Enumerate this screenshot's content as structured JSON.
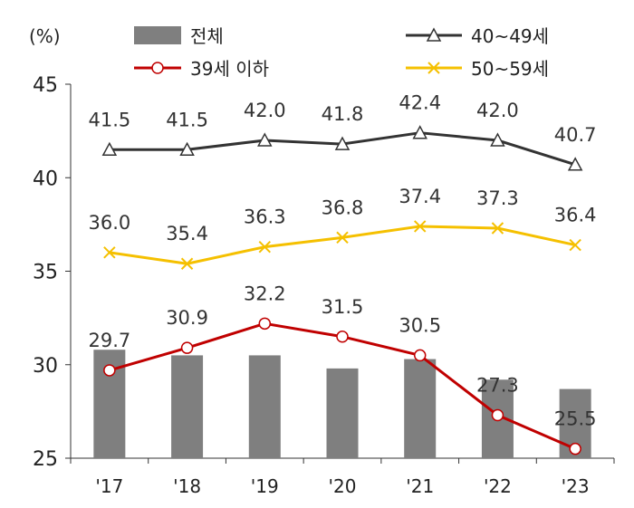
{
  "chart_data": {
    "type": "bar+line",
    "unit_label": "(%)",
    "categories": [
      "'17",
      "'18",
      "'19",
      "'20",
      "'21",
      "'22",
      "'23"
    ],
    "ylim": [
      25,
      45
    ],
    "yticks": [
      25,
      30,
      35,
      40,
      45
    ],
    "bars": {
      "name": "전체",
      "color": "#7f7f7f",
      "values": [
        30.8,
        30.5,
        30.5,
        29.8,
        30.3,
        29.2,
        28.7
      ]
    },
    "series": [
      {
        "name": "40~49세",
        "color": "#333333",
        "marker": "triangle",
        "values": [
          41.5,
          41.5,
          42.0,
          41.8,
          42.4,
          42.0,
          40.7
        ],
        "labels": [
          "41.5",
          "41.5",
          "42.0",
          "41.8",
          "42.4",
          "42.0",
          "40.7"
        ]
      },
      {
        "name": "50~59세",
        "color": "#f5c000",
        "marker": "x",
        "values": [
          36.0,
          35.4,
          36.3,
          36.8,
          37.4,
          37.3,
          36.4
        ],
        "labels": [
          "36.0",
          "35.4",
          "36.3",
          "36.8",
          "37.4",
          "37.3",
          "36.4"
        ]
      },
      {
        "name": "39세 이하",
        "color": "#c00000",
        "marker": "circle",
        "values": [
          29.7,
          30.9,
          32.2,
          31.5,
          30.5,
          27.3,
          25.5
        ],
        "labels": [
          "29.7",
          "30.9",
          "32.2",
          "31.5",
          "30.5",
          "27.3",
          "25.5"
        ]
      }
    ],
    "legend": [
      "전체",
      "40~49세",
      "39세 이하",
      "50~59세"
    ],
    "grid": false
  }
}
